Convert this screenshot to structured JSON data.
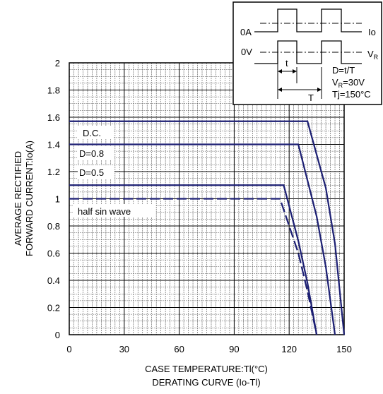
{
  "chart_data": {
    "type": "line",
    "title": "DERATING CURVE (Io-Tl)",
    "xlabel": "CASE TEMPERATURE:Tl(°C)",
    "ylabel_line1": "AVERAGE RECTIFIED",
    "ylabel_line2": "FORWARD CURRENT:Io(A)",
    "xlim": [
      0,
      150
    ],
    "ylim": [
      0,
      2
    ],
    "xticks": [
      0,
      30,
      60,
      90,
      120,
      150
    ],
    "xtick_labels": [
      "0",
      "30",
      "60",
      "90",
      "120",
      "150"
    ],
    "yticks": [
      0,
      0.2,
      0.4,
      0.6,
      0.8,
      1,
      1.2,
      1.4,
      1.6,
      1.8,
      2
    ],
    "ytick_labels": [
      "0",
      "0.2",
      "0.4",
      "0.6",
      "0.8",
      "1",
      "1.2",
      "1.4",
      "1.6",
      "1.8",
      "2"
    ],
    "grid": true,
    "line_color": "#1c1f73",
    "series": [
      {
        "name": "D.C.",
        "style": "solid",
        "x": [
          0,
          130,
          140,
          145,
          150
        ],
        "y": [
          1.57,
          1.57,
          1.08,
          0.67,
          0.0
        ]
      },
      {
        "name": "D=0.8",
        "style": "solid",
        "x": [
          0,
          125,
          135,
          140,
          145
        ],
        "y": [
          1.4,
          1.4,
          0.87,
          0.5,
          0.0
        ]
      },
      {
        "name": "D=0.5",
        "style": "solid",
        "x": [
          0,
          117,
          125,
          130,
          135
        ],
        "y": [
          1.1,
          1.1,
          0.69,
          0.38,
          0.0
        ]
      },
      {
        "name": "half sin wave",
        "style": "dashed",
        "x": [
          0,
          115,
          125,
          130,
          135
        ],
        "y": [
          1.0,
          1.0,
          0.6,
          0.32,
          0.0
        ]
      }
    ],
    "inset": {
      "lbl_0A": "0A",
      "lbl_Io": "Io",
      "lbl_0V": "0V",
      "lbl_VR": "V",
      "lbl_VR_sub": "R",
      "lbl_t": "t",
      "lbl_T": "T",
      "note1": "D=t/T",
      "note2_main": "V",
      "note2_sub": "R",
      "note2_rest": "=30V",
      "note3": "Tj=150°C"
    }
  }
}
